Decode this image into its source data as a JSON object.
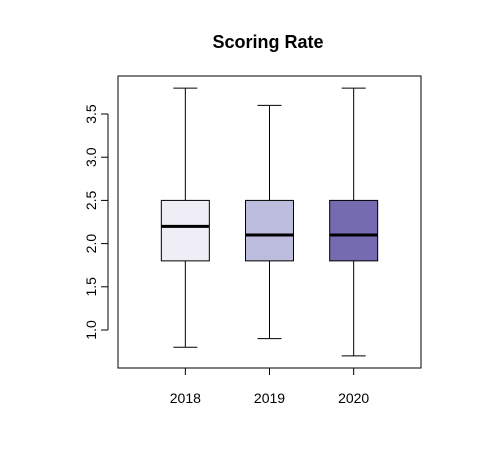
{
  "chart_data": {
    "type": "box",
    "title": "Scoring Rate",
    "xlabel": "",
    "ylabel": "",
    "categories": [
      "2018",
      "2019",
      "2020"
    ],
    "boxes": [
      {
        "category": "2018",
        "min": 0.8,
        "q1": 1.8,
        "median": 2.2,
        "q3": 2.5,
        "max": 3.8,
        "color": "#EFEDF6"
      },
      {
        "category": "2019",
        "min": 0.9,
        "q1": 1.8,
        "median": 2.1,
        "q3": 2.5,
        "max": 3.6,
        "color": "#BCBDDC"
      },
      {
        "category": "2020",
        "min": 0.7,
        "q1": 1.8,
        "median": 2.1,
        "q3": 2.5,
        "max": 3.8,
        "color": "#756BB1"
      }
    ],
    "y_ticks": [
      1.0,
      1.5,
      2.0,
      2.5,
      3.0,
      3.5
    ],
    "y_tick_labels": [
      "1.0",
      "1.5",
      "2.0",
      "2.5",
      "3.0",
      "3.5"
    ],
    "ylim": [
      0.56,
      3.94
    ],
    "grid": false,
    "legend": "none"
  }
}
